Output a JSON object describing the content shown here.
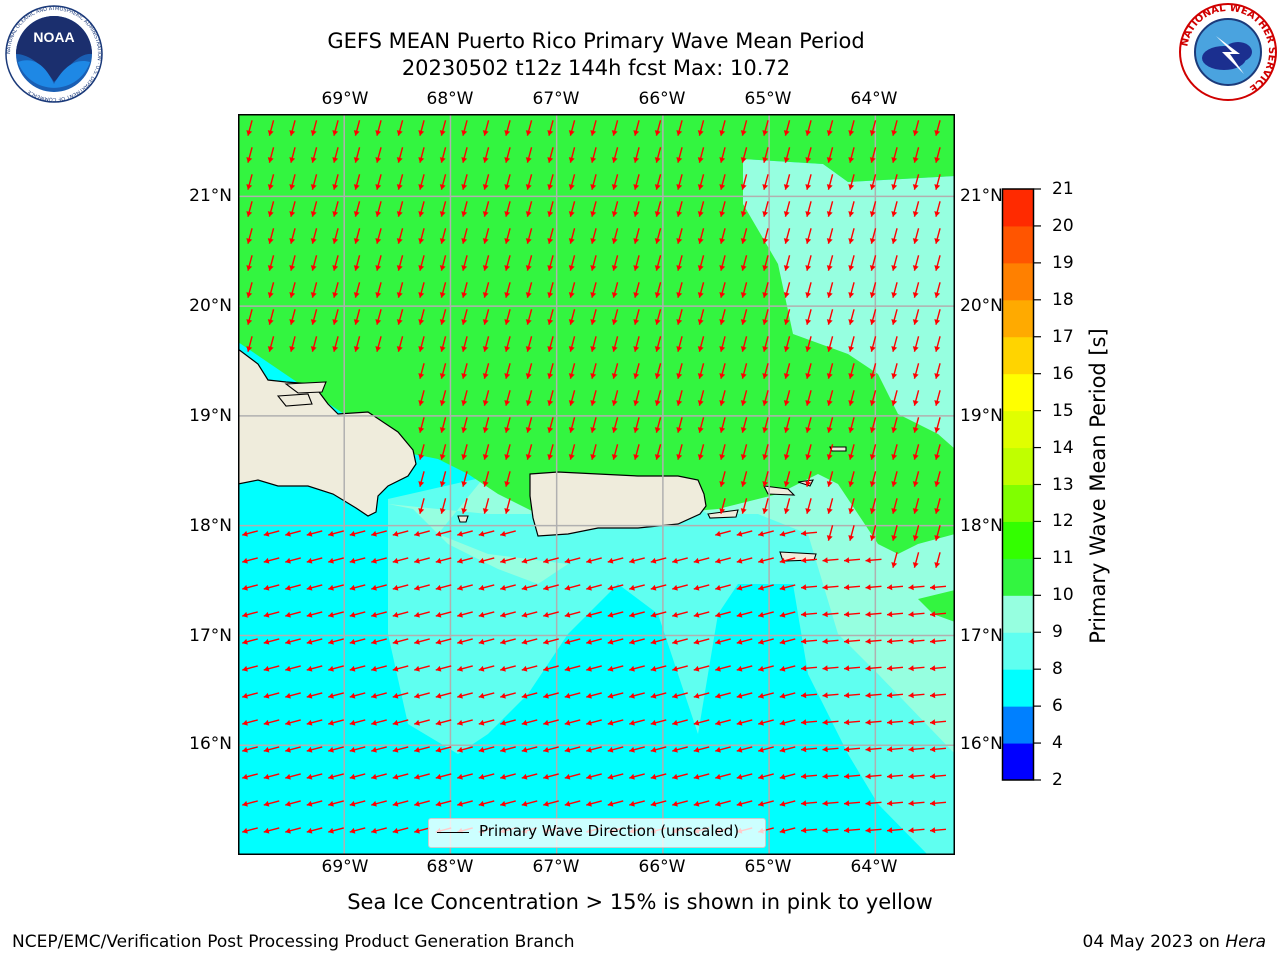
{
  "header": {
    "title_line1": "GEFS MEAN Puerto Rico Primary Wave Mean Period",
    "title_line2": "20230502 t12z 144h fcst   Max: 10.72",
    "left_logo_icon": "noaa-logo-icon",
    "right_logo_icon": "nws-logo-icon",
    "left_logo_text": "NOAA",
    "left_logo_ring_text": "NATIONAL OCEANIC AND ATMOSPHERIC ADMINISTRATION · U.S. DEPARTMENT OF COMMERCE",
    "right_logo_ring_text": "NATIONAL WEATHER SERVICE"
  },
  "map": {
    "lon_labels": [
      "69°W",
      "68°W",
      "67°W",
      "66°W",
      "65°W",
      "64°W"
    ],
    "lat_labels": [
      "21°N",
      "20°N",
      "19°N",
      "18°N",
      "17°N",
      "16°N"
    ],
    "extent": {
      "lon_min": -70.0,
      "lon_max": -63.25,
      "lat_min": 15.0,
      "lat_max": 21.75
    },
    "arrow_color": "#ff0000",
    "land_color": "#efecdc",
    "gridline_color": "#b0b0b0",
    "arrow_direction_north_of_islands": "from NNE (pointing south-southwest)",
    "arrow_direction_south_of_islands": "from ESE (pointing west-northwest)",
    "legend_label": "Primary Wave Direction (unscaled)"
  },
  "colorbar": {
    "title": "Primary Wave Mean Period [s]",
    "ticks": [
      "2",
      "4",
      "6",
      "8",
      "9",
      "10",
      "11",
      "12",
      "13",
      "14",
      "15",
      "16",
      "17",
      "18",
      "19",
      "20",
      "21"
    ],
    "colors": [
      "#0000ff",
      "#0080ff",
      "#00ffff",
      "#5ffff0",
      "#96ffe0",
      "#33f540",
      "#33ff00",
      "#80ff00",
      "#c0ff00",
      "#e0ff00",
      "#ffff00",
      "#ffd400",
      "#ffaa00",
      "#ff8000",
      "#ff5500",
      "#ff2a00",
      "#ff0000"
    ]
  },
  "footnote": "Sea Ice Concentration > 15% is shown in pink to yellow",
  "footer": {
    "left": "NCEP/EMC/Verification Post Processing Product Generation Branch",
    "right_date": "04 May 2023 on",
    "right_host": "Hera"
  }
}
